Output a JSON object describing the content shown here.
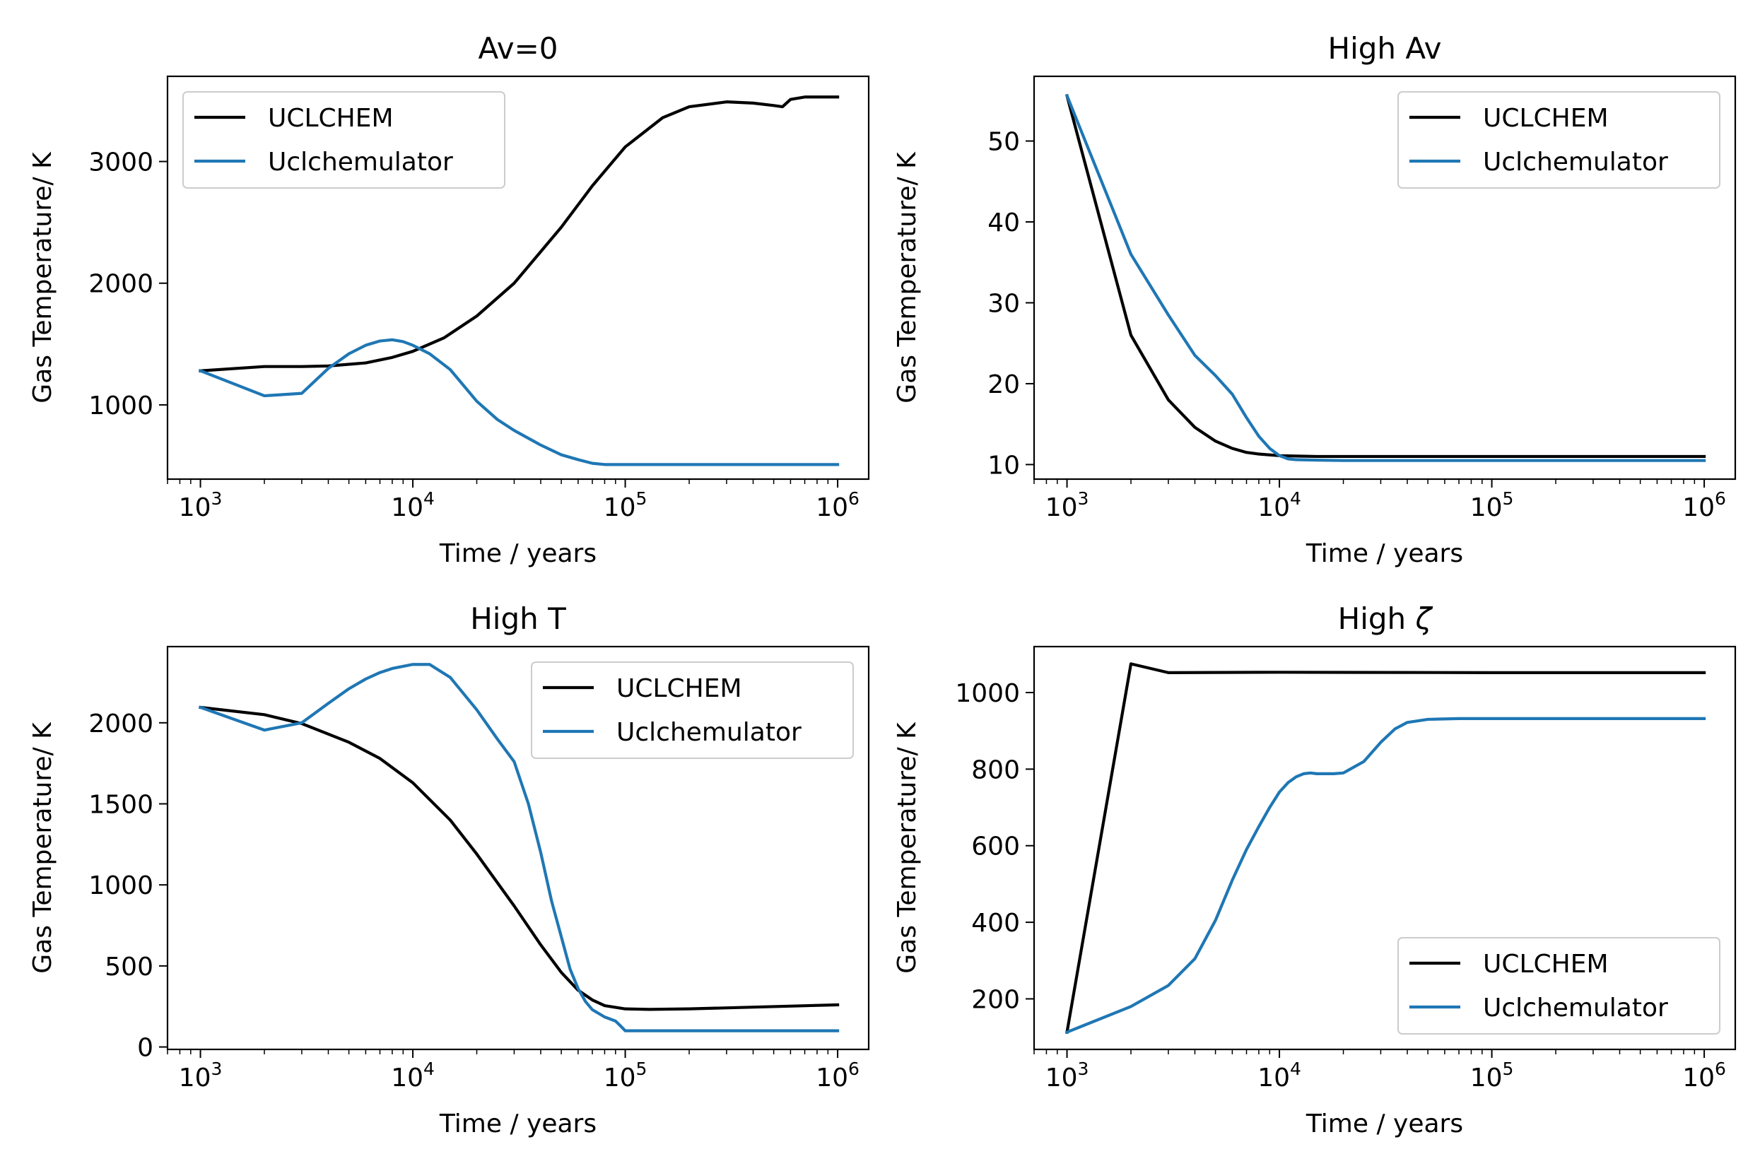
{
  "colors": {
    "uclchem": "#000000",
    "emulator": "#1f77b4"
  },
  "chart_data": [
    {
      "type": "line",
      "title": "Av=0",
      "xlabel": "Time / years",
      "ylabel": "Gas Temperature/ K",
      "xscale": "log",
      "xlim": [
        700,
        1400000
      ],
      "ylim": [
        390,
        3700
      ],
      "xticks": [
        1000,
        10000,
        100000,
        1000000
      ],
      "xtick_labels": [
        {
          "base": "10",
          "exp": "3"
        },
        {
          "base": "10",
          "exp": "4"
        },
        {
          "base": "10",
          "exp": "5"
        },
        {
          "base": "10",
          "exp": "6"
        }
      ],
      "yticks": [
        1000,
        2000,
        3000
      ],
      "ytick_labels": [
        "1000",
        "2000",
        "3000"
      ],
      "legend": {
        "placement": "upper-left",
        "entries": [
          "UCLCHEM",
          "Uclchemulator"
        ]
      },
      "series": [
        {
          "name": "UCLCHEM",
          "color": "#000000",
          "x": [
            1000,
            2000,
            3000,
            4000,
            6000,
            8000,
            10000,
            14000,
            20000,
            30000,
            50000,
            70000,
            100000,
            150000,
            200000,
            300000,
            400000,
            500000,
            550000,
            600000,
            700000,
            1000000
          ],
          "y": [
            1280,
            1315,
            1315,
            1320,
            1345,
            1390,
            1440,
            1550,
            1730,
            2000,
            2460,
            2800,
            3120,
            3360,
            3450,
            3490,
            3480,
            3460,
            3450,
            3510,
            3530,
            3530
          ]
        },
        {
          "name": "Uclchemulator",
          "color": "#1f77b4",
          "x": [
            1000,
            2000,
            3000,
            4000,
            5000,
            6000,
            7000,
            8000,
            9000,
            10000,
            12000,
            15000,
            20000,
            25000,
            30000,
            40000,
            50000,
            60000,
            70000,
            80000,
            100000,
            200000,
            1000000
          ],
          "y": [
            1280,
            1075,
            1095,
            1300,
            1420,
            1490,
            1525,
            1535,
            1520,
            1490,
            1420,
            1290,
            1030,
            880,
            790,
            670,
            590,
            550,
            520,
            510,
            510,
            510,
            510
          ]
        }
      ]
    },
    {
      "type": "line",
      "title": "High Av",
      "xlabel": "Time / years",
      "ylabel": "Gas Temperature/ K",
      "xscale": "log",
      "xlim": [
        700,
        1400000
      ],
      "ylim": [
        8.2,
        58
      ],
      "xticks": [
        1000,
        10000,
        100000,
        1000000
      ],
      "xtick_labels": [
        {
          "base": "10",
          "exp": "3"
        },
        {
          "base": "10",
          "exp": "4"
        },
        {
          "base": "10",
          "exp": "5"
        },
        {
          "base": "10",
          "exp": "6"
        }
      ],
      "yticks": [
        10,
        20,
        30,
        40,
        50
      ],
      "ytick_labels": [
        "10",
        "20",
        "30",
        "40",
        "50"
      ],
      "legend": {
        "placement": "upper-right",
        "entries": [
          "UCLCHEM",
          "Uclchemulator"
        ]
      },
      "series": [
        {
          "name": "UCLCHEM",
          "color": "#000000",
          "x": [
            1000,
            2000,
            3000,
            4000,
            5000,
            6000,
            7000,
            8000,
            10000,
            12000,
            15000,
            20000,
            1000000
          ],
          "y": [
            55.6,
            26,
            18,
            14.6,
            12.9,
            12,
            11.5,
            11.3,
            11.1,
            11.05,
            11,
            11,
            11
          ]
        },
        {
          "name": "Uclchemulator",
          "color": "#1f77b4",
          "x": [
            1000,
            2000,
            3000,
            4000,
            5000,
            6000,
            7000,
            8000,
            9000,
            10000,
            11000,
            12000,
            15000,
            20000,
            1000000
          ],
          "y": [
            55.6,
            36,
            28.5,
            23.5,
            21,
            18.7,
            15.8,
            13.5,
            12,
            11.1,
            10.7,
            10.6,
            10.55,
            10.5,
            10.5
          ]
        }
      ]
    },
    {
      "type": "line",
      "title": "High T",
      "xlabel": "Time / years",
      "ylabel": "Gas Temperature/ K",
      "xscale": "log",
      "xlim": [
        700,
        1400000
      ],
      "ylim": [
        -15,
        2470
      ],
      "xticks": [
        1000,
        10000,
        100000,
        1000000
      ],
      "xtick_labels": [
        {
          "base": "10",
          "exp": "3"
        },
        {
          "base": "10",
          "exp": "4"
        },
        {
          "base": "10",
          "exp": "5"
        },
        {
          "base": "10",
          "exp": "6"
        }
      ],
      "yticks": [
        0,
        500,
        1000,
        1500,
        2000
      ],
      "ytick_labels": [
        "0",
        "500",
        "1000",
        "1500",
        "2000"
      ],
      "legend": {
        "placement": "upper-right",
        "entries": [
          "UCLCHEM",
          "Uclchemulator"
        ]
      },
      "series": [
        {
          "name": "UCLCHEM",
          "color": "#000000",
          "x": [
            1000,
            2000,
            3000,
            5000,
            7000,
            10000,
            15000,
            20000,
            30000,
            40000,
            50000,
            60000,
            70000,
            80000,
            100000,
            130000,
            200000,
            1000000
          ],
          "y": [
            2095,
            2050,
            1995,
            1880,
            1780,
            1630,
            1400,
            1190,
            870,
            630,
            460,
            350,
            290,
            255,
            235,
            232,
            235,
            260
          ]
        },
        {
          "name": "Uclchemulator",
          "color": "#1f77b4",
          "x": [
            1000,
            2000,
            3000,
            4000,
            5000,
            6000,
            7000,
            8000,
            10000,
            12000,
            15000,
            20000,
            25000,
            30000,
            35000,
            40000,
            45000,
            50000,
            55000,
            60000,
            65000,
            70000,
            80000,
            90000,
            95000,
            100000,
            1000000
          ],
          "y": [
            2095,
            1955,
            2000,
            2120,
            2210,
            2270,
            2310,
            2335,
            2360,
            2360,
            2280,
            2080,
            1900,
            1760,
            1500,
            1200,
            900,
            680,
            480,
            360,
            280,
            230,
            185,
            160,
            130,
            100,
            100
          ]
        }
      ]
    },
    {
      "type": "line",
      "title": "High ζ",
      "title_prefix": "High ",
      "title_symbol": "ζ",
      "xlabel": "Time / years",
      "ylabel": "Gas Temperature/ K",
      "xscale": "log",
      "xlim": [
        700,
        1400000
      ],
      "ylim": [
        68,
        1120
      ],
      "xticks": [
        1000,
        10000,
        100000,
        1000000
      ],
      "xtick_labels": [
        {
          "base": "10",
          "exp": "3"
        },
        {
          "base": "10",
          "exp": "4"
        },
        {
          "base": "10",
          "exp": "5"
        },
        {
          "base": "10",
          "exp": "6"
        }
      ],
      "yticks": [
        200,
        400,
        600,
        800,
        1000
      ],
      "ytick_labels": [
        "200",
        "400",
        "600",
        "800",
        "1000"
      ],
      "legend": {
        "placement": "lower-right",
        "entries": [
          "UCLCHEM",
          "Uclchemulator"
        ]
      },
      "series": [
        {
          "name": "UCLCHEM",
          "color": "#000000",
          "x": [
            1000,
            2000,
            3000,
            10000,
            100000,
            1000000
          ],
          "y": [
            113,
            1075,
            1052,
            1053,
            1052,
            1052
          ]
        },
        {
          "name": "Uclchemulator",
          "color": "#1f77b4",
          "x": [
            1000,
            2000,
            3000,
            4000,
            5000,
            6000,
            7000,
            8000,
            9000,
            10000,
            11000,
            12000,
            13000,
            14000,
            15000,
            18000,
            20000,
            25000,
            30000,
            35000,
            40000,
            50000,
            70000,
            100000,
            1000000
          ],
          "y": [
            113,
            180,
            235,
            305,
            405,
            510,
            590,
            650,
            700,
            740,
            765,
            780,
            788,
            790,
            788,
            788,
            790,
            820,
            870,
            905,
            922,
            930,
            932,
            932,
            932
          ]
        }
      ]
    }
  ]
}
